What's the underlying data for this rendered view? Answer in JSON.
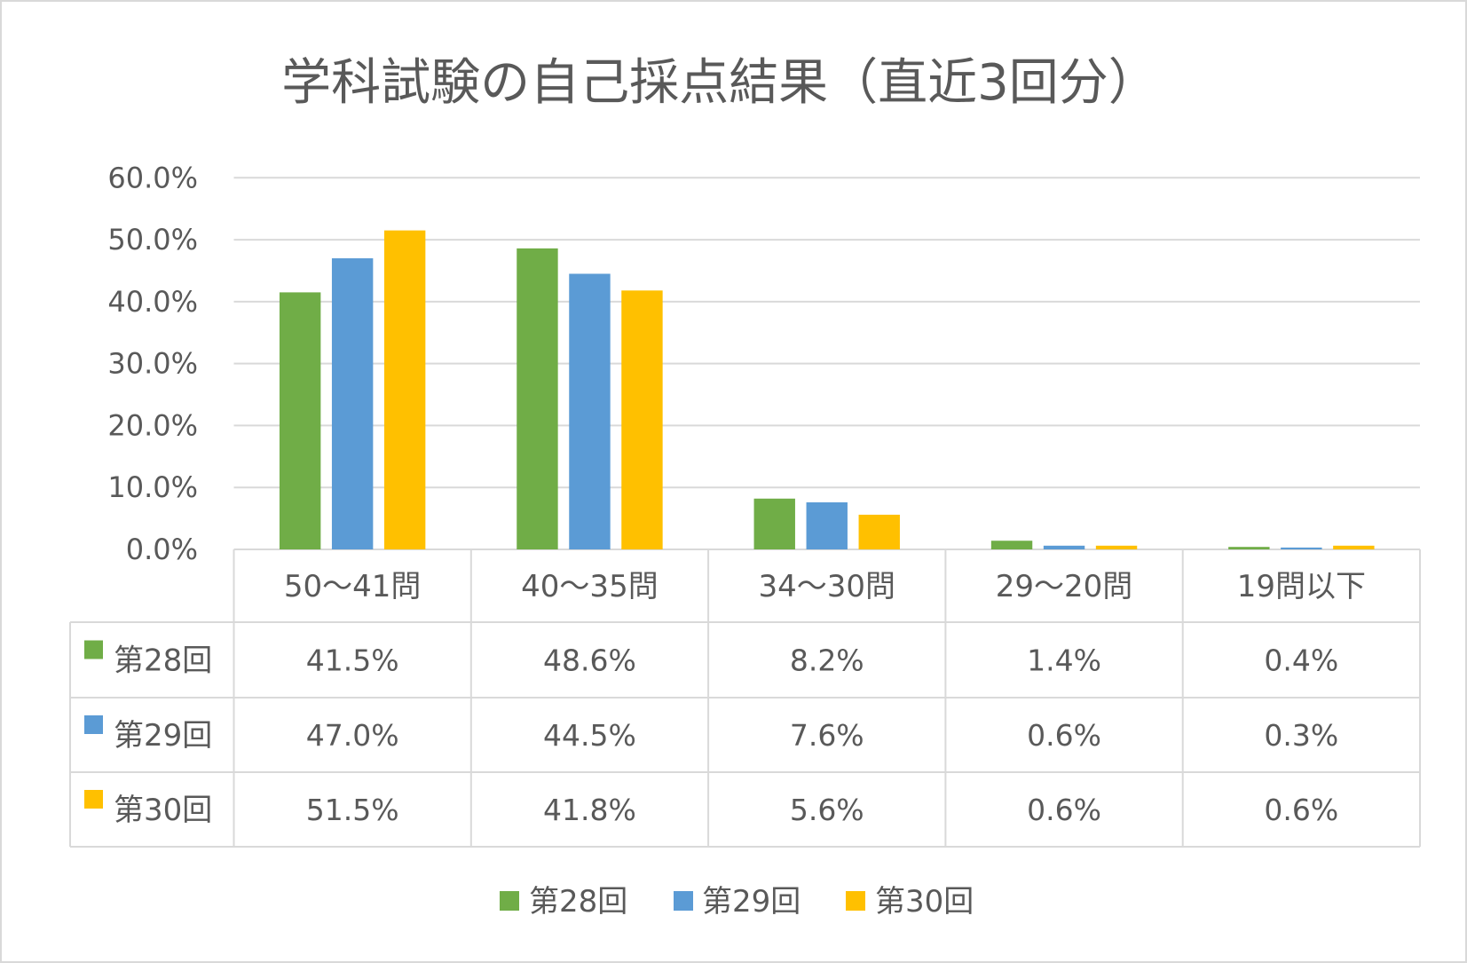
{
  "chart_data": {
    "type": "bar",
    "title": "学科試験の自己採点結果（直近3回分）",
    "categories": [
      "50～41問",
      "40～35問",
      "34～30問",
      "29～20問",
      "19問以下"
    ],
    "series": [
      {
        "name": "第28回",
        "values": [
          41.5,
          48.6,
          8.2,
          1.4,
          0.4
        ],
        "color": "#70AD47"
      },
      {
        "name": "第29回",
        "values": [
          47.0,
          44.5,
          7.6,
          0.6,
          0.3
        ],
        "color": "#5B9BD5"
      },
      {
        "name": "第30回",
        "values": [
          51.5,
          41.8,
          5.6,
          0.6,
          0.6
        ],
        "color": "#FFC000"
      }
    ],
    "ylim": [
      0,
      60
    ],
    "yticks": [
      "0.0%",
      "10.0%",
      "20.0%",
      "30.0%",
      "40.0%",
      "50.0%",
      "60.0%"
    ],
    "data_table": {
      "cells": [
        [
          "41.5%",
          "48.6%",
          "8.2%",
          "1.4%",
          "0.4%"
        ],
        [
          "47.0%",
          "44.5%",
          "7.6%",
          "0.6%",
          "0.3%"
        ],
        [
          "51.5%",
          "41.8%",
          "5.6%",
          "0.6%",
          "0.6%"
        ]
      ]
    },
    "grid": true,
    "legend": "bottom"
  }
}
